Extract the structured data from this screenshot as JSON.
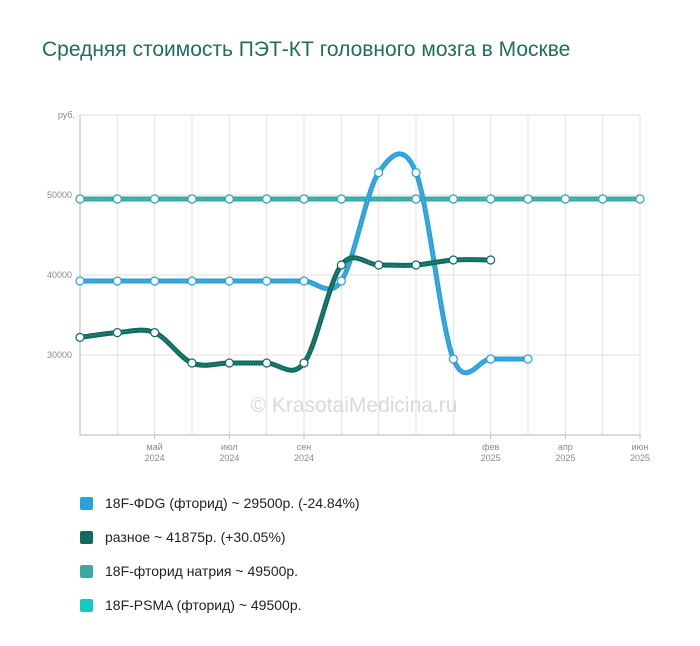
{
  "title": "Средняя стоимость ПЭТ-КТ головного мозга в Москве",
  "watermark": "© KrasotaiMedicina.ru",
  "chart_data": {
    "type": "line",
    "title": "Средняя стоимость ПЭТ-КТ головного мозга в Москве",
    "y_unit": "руб.",
    "ylim": [
      20000,
      60000
    ],
    "y_ticks": [
      "30000",
      "40000",
      "50000"
    ],
    "x_dates": [
      "2024-03",
      "2024-04",
      "2024-05",
      "2024-06",
      "2024-07",
      "2024-08",
      "2024-09",
      "2024-10",
      "2024-11",
      "2024-12",
      "2025-01",
      "2025-02",
      "2025-03",
      "2025-04",
      "2025-05",
      "2025-06"
    ],
    "x_ticks": [
      {
        "month": "май",
        "year": "2024",
        "date": "2024-05"
      },
      {
        "month": "июл",
        "year": "2024",
        "date": "2024-07"
      },
      {
        "month": "сен",
        "year": "2024",
        "date": "2024-09"
      },
      {
        "month": "фев",
        "year": "2025",
        "date": "2025-02"
      },
      {
        "month": "апр",
        "year": "2025",
        "date": "2025-04"
      },
      {
        "month": "июн",
        "year": "2025",
        "date": "2025-06"
      }
    ],
    "grid": true,
    "legend_position": "bottom",
    "series": [
      {
        "name": "18F-PSMA (фторид)",
        "color": "#14c8c0",
        "points": [
          [
            "2024-03",
            49500
          ],
          [
            "2024-04",
            49500
          ],
          [
            "2024-05",
            49500
          ],
          [
            "2024-06",
            49500
          ],
          [
            "2024-07",
            49500
          ],
          [
            "2024-08",
            49500
          ],
          [
            "2024-09",
            49500
          ],
          [
            "2024-10",
            49500
          ],
          [
            "2024-12",
            49500
          ],
          [
            "2025-01",
            49500
          ],
          [
            "2025-02",
            49500
          ],
          [
            "2025-03",
            49500
          ],
          [
            "2025-04",
            49500
          ],
          [
            "2025-05",
            49500
          ],
          [
            "2025-06",
            49500
          ]
        ]
      },
      {
        "name": "18F-фторид натрия",
        "color": "#3aa9a3",
        "points": [
          [
            "2024-03",
            49500
          ],
          [
            "2024-04",
            49500
          ],
          [
            "2024-05",
            49500
          ],
          [
            "2024-06",
            49500
          ],
          [
            "2024-07",
            49500
          ],
          [
            "2024-08",
            49500
          ],
          [
            "2024-09",
            49500
          ],
          [
            "2024-10",
            49500
          ],
          [
            "2024-12",
            49500
          ],
          [
            "2025-01",
            49500
          ],
          [
            "2025-02",
            49500
          ],
          [
            "2025-03",
            49500
          ],
          [
            "2025-04",
            49500
          ],
          [
            "2025-05",
            49500
          ],
          [
            "2025-06",
            49500
          ]
        ]
      },
      {
        "name": "18F-ФDG (фторид)",
        "color": "#2aa0dc",
        "points": [
          [
            "2024-03",
            39250
          ],
          [
            "2024-04",
            39250
          ],
          [
            "2024-05",
            39250
          ],
          [
            "2024-06",
            39250
          ],
          [
            "2024-07",
            39250
          ],
          [
            "2024-08",
            39250
          ],
          [
            "2024-09",
            39250
          ],
          [
            "2024-10",
            39250
          ],
          [
            "2024-11",
            52800
          ],
          [
            "2024-12",
            52800
          ],
          [
            "2025-01",
            29500
          ],
          [
            "2025-02",
            29500
          ],
          [
            "2025-03",
            29500
          ]
        ]
      },
      {
        "name": "разное",
        "color": "#0d6b60",
        "points": [
          [
            "2024-03",
            32200
          ],
          [
            "2024-04",
            32800
          ],
          [
            "2024-05",
            32800
          ],
          [
            "2024-06",
            29000
          ],
          [
            "2024-07",
            29000
          ],
          [
            "2024-08",
            29000
          ],
          [
            "2024-09",
            29000
          ],
          [
            "2024-10",
            41250
          ],
          [
            "2024-11",
            41250
          ],
          [
            "2024-12",
            41250
          ],
          [
            "2025-01",
            41875
          ],
          [
            "2025-02",
            41875
          ]
        ]
      }
    ]
  },
  "legend": [
    {
      "label": "18F-ФDG (фторид) ~ 29500р. (-24.84%)",
      "color": "#2aa0dc"
    },
    {
      "label": "разное ~ 41875р. (+30.05%)",
      "color": "#0d6b60"
    },
    {
      "label": "18F-фторид натрия ~ 49500р.",
      "color": "#3aa9a3"
    },
    {
      "label": "18F-PSMA (фторид) ~ 49500р.",
      "color": "#14c8c0"
    }
  ]
}
